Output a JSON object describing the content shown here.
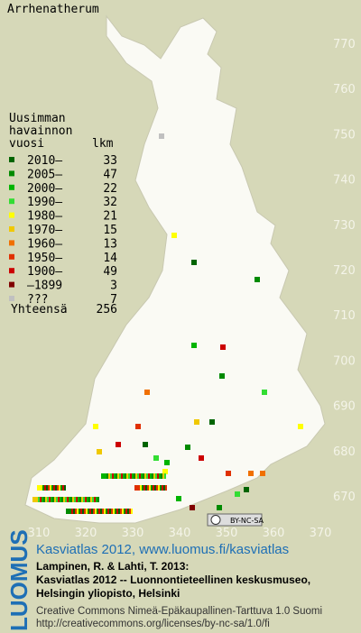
{
  "title": "Arrhenatherum",
  "legend": {
    "heading": [
      "Uusimman",
      "havainnon",
      "vuosi"
    ],
    "count_heading": "lkm",
    "rows": [
      {
        "label": "2010–",
        "count": 33,
        "color": "#006400"
      },
      {
        "label": "2005–",
        "count": 47,
        "color": "#008a00"
      },
      {
        "label": "2000–",
        "count": 22,
        "color": "#00b400"
      },
      {
        "label": "1990–",
        "count": 32,
        "color": "#33dd33"
      },
      {
        "label": "1980–",
        "count": 21,
        "color": "#ffff00"
      },
      {
        "label": "1970–",
        "count": 15,
        "color": "#f0c800"
      },
      {
        "label": "1960–",
        "count": 13,
        "color": "#f07000"
      },
      {
        "label": "1950–",
        "count": 14,
        "color": "#e03000"
      },
      {
        "label": "1900–",
        "count": 49,
        "color": "#cc0000"
      },
      {
        "label": "–1899",
        "count": 3,
        "color": "#800000"
      },
      {
        "label": "???",
        "count": 7,
        "color": "#c0c0c0"
      }
    ],
    "total_label": "Yhteensä",
    "total": 256
  },
  "grid_north": [
    770,
    760,
    750,
    740,
    730,
    720,
    710,
    700,
    690,
    680,
    670
  ],
  "grid_east": [
    310,
    320,
    330,
    340,
    350,
    360,
    370
  ],
  "cc_badge": "BY-NC-SA",
  "footer": {
    "logo": "LUOMUS",
    "link": "Kasviatlas 2012, www.luomus.fi/kasviatlas",
    "citation": [
      "Lampinen, R. & Lahti, T. 2013:",
      "Kasviatlas 2012 -- Luonnontieteellinen keskusmuseo,",
      "Helsingin yliopisto, Helsinki"
    ],
    "license": [
      "Creative Commons Nimeä-Epäkaupallinen-Tarttuva 1.0 Suomi",
      "http://creativecommons.org/licenses/by-nc-sa/1.0/fi"
    ]
  }
}
